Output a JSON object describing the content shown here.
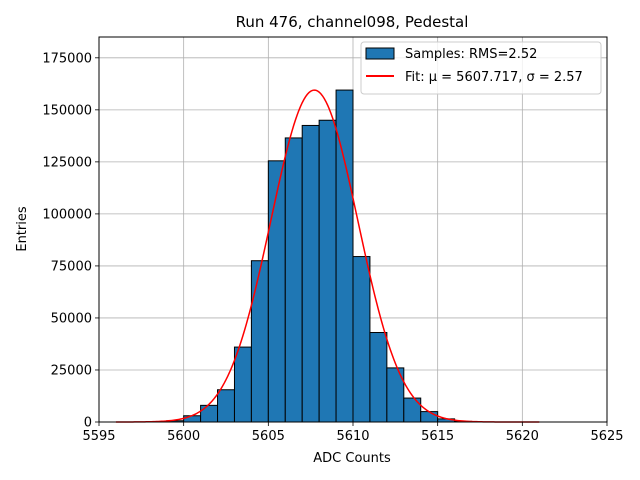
{
  "chart_data": {
    "type": "bar",
    "title": "Run 476, channel098, Pedestal",
    "xlabel": "ADC Counts",
    "ylabel": "Entries",
    "xlim": [
      5595,
      5625
    ],
    "ylim": [
      0,
      185000
    ],
    "xticks": [
      5595,
      5600,
      5605,
      5610,
      5615,
      5620,
      5625
    ],
    "yticks": [
      0,
      25000,
      50000,
      75000,
      100000,
      125000,
      150000,
      175000
    ],
    "grid": true,
    "legend_position": "top-right",
    "histogram": {
      "name": "Samples: RMS=2.52",
      "color": "#1f77b4",
      "bin_width": 1,
      "bin_edges_start": [
        5599,
        5600,
        5601,
        5602,
        5603,
        5604,
        5605,
        5606,
        5607,
        5608,
        5609,
        5610,
        5611,
        5612,
        5613,
        5614,
        5615,
        5616
      ],
      "values": [
        600,
        3000,
        8000,
        15500,
        36000,
        77500,
        125500,
        136500,
        142500,
        145000,
        159500,
        79500,
        43000,
        26000,
        11500,
        5000,
        1500,
        300
      ]
    },
    "fit": {
      "name": "Fit: μ = 5607.717, σ = 2.57",
      "color": "#ff0000",
      "mu": 5607.717,
      "sigma": 2.57,
      "amplitude": 159500,
      "x_range": [
        5596,
        5621
      ]
    }
  }
}
